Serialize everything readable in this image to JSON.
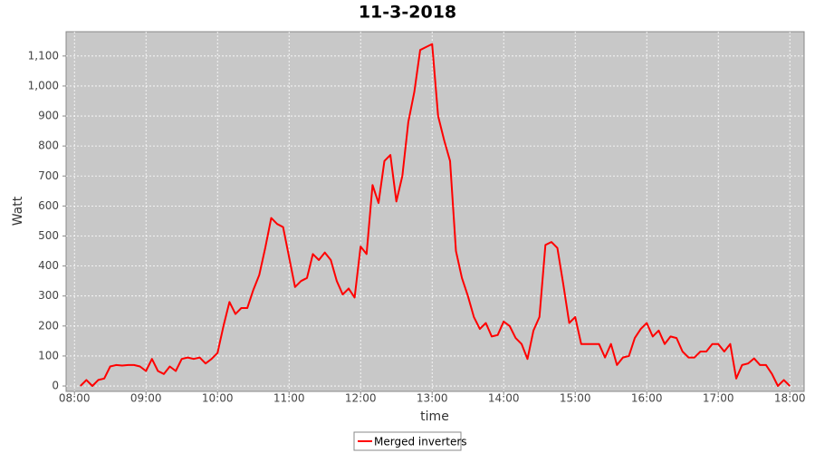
{
  "chart_data": {
    "type": "line",
    "title": "11-3-2018",
    "x_label": "time",
    "y_label": "Watt",
    "x": [
      "08:05",
      "08:10",
      "08:15",
      "08:20",
      "08:25",
      "08:30",
      "08:35",
      "08:40",
      "08:45",
      "08:50",
      "08:55",
      "09:00",
      "09:05",
      "09:10",
      "09:15",
      "09:20",
      "09:25",
      "09:30",
      "09:35",
      "09:40",
      "09:45",
      "09:50",
      "09:55",
      "10:00",
      "10:05",
      "10:10",
      "10:15",
      "10:20",
      "10:25",
      "10:30",
      "10:35",
      "10:40",
      "10:45",
      "10:50",
      "10:55",
      "11:00",
      "11:05",
      "11:10",
      "11:15",
      "11:20",
      "11:25",
      "11:30",
      "11:35",
      "11:40",
      "11:45",
      "11:50",
      "11:55",
      "12:00",
      "12:05",
      "12:10",
      "12:15",
      "12:20",
      "12:25",
      "12:30",
      "12:35",
      "12:40",
      "12:45",
      "12:50",
      "12:55",
      "13:00",
      "13:05",
      "13:10",
      "13:15",
      "13:20",
      "13:25",
      "13:30",
      "13:35",
      "13:40",
      "13:45",
      "13:50",
      "13:55",
      "14:00",
      "14:05",
      "14:10",
      "14:15",
      "14:20",
      "14:25",
      "14:30",
      "14:35",
      "14:40",
      "14:45",
      "14:50",
      "14:55",
      "15:00",
      "15:05",
      "15:10",
      "15:15",
      "15:20",
      "15:25",
      "15:30",
      "15:35",
      "15:40",
      "15:45",
      "15:50",
      "15:55",
      "16:00",
      "16:05",
      "16:10",
      "16:15",
      "16:20",
      "16:25",
      "16:30",
      "16:35",
      "16:40",
      "16:45",
      "16:50",
      "16:55",
      "17:00",
      "17:05",
      "17:10",
      "17:15",
      "17:20",
      "17:25",
      "17:30",
      "17:35",
      "17:40",
      "17:45",
      "17:50",
      "17:55",
      "18:00"
    ],
    "series": [
      {
        "name": "Merged inverters",
        "color": "#ff0000",
        "values": [
          0,
          20,
          0,
          20,
          25,
          65,
          70,
          68,
          70,
          70,
          65,
          50,
          90,
          50,
          40,
          65,
          50,
          90,
          95,
          90,
          95,
          75,
          90,
          110,
          200,
          280,
          240,
          260,
          260,
          320,
          370,
          460,
          560,
          540,
          530,
          430,
          330,
          350,
          360,
          440,
          420,
          445,
          420,
          350,
          305,
          325,
          295,
          465,
          440,
          670,
          610,
          750,
          770,
          615,
          700,
          880,
          980,
          1120,
          1130,
          1140,
          900,
          820,
          750,
          450,
          360,
          300,
          230,
          190,
          210,
          165,
          170,
          215,
          200,
          160,
          140,
          90,
          185,
          230,
          470,
          480,
          460,
          340,
          210,
          230,
          140,
          140,
          140,
          140,
          95,
          140,
          70,
          95,
          100,
          160,
          190,
          210,
          165,
          185,
          140,
          165,
          160,
          115,
          95,
          95,
          115,
          115,
          140,
          140,
          115,
          140,
          25,
          70,
          75,
          92,
          70,
          70,
          40,
          0,
          20,
          0
        ]
      }
    ],
    "xlim": [
      "07:53",
      "18:12"
    ],
    "xticks": [
      "08:00",
      "09:00",
      "10:00",
      "11:00",
      "12:00",
      "13:00",
      "14:00",
      "15:00",
      "16:00",
      "17:00",
      "18:00"
    ],
    "ylim": [
      -18,
      1181
    ],
    "yticks": [
      0,
      100,
      200,
      300,
      400,
      500,
      600,
      700,
      800,
      900,
      {
        "value": 1000,
        "label": "1,000"
      },
      {
        "value": 1100,
        "label": "1,100"
      }
    ],
    "grid": true,
    "legend": "bottom"
  }
}
